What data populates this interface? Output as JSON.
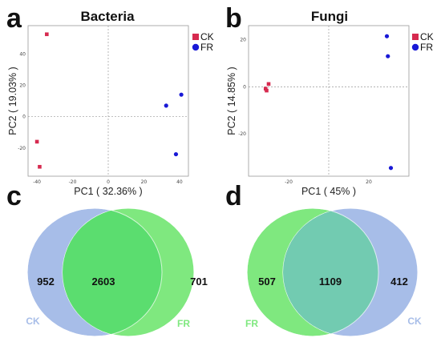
{
  "chart_data": [
    {
      "panel": "a",
      "type": "scatter",
      "title": "Bacteria",
      "xlabel": "PC1 ( 32.36% )",
      "ylabel": "PC2 ( 19.03% )",
      "xlim": [
        -45,
        45
      ],
      "ylim": [
        -38,
        58
      ],
      "xticks": [
        -40,
        -20,
        0,
        20,
        40
      ],
      "yticks": [
        -20,
        0,
        20,
        40
      ],
      "grid": false,
      "zero_lines": "dashed",
      "legend": "top-right",
      "series": [
        {
          "name": "CK",
          "marker": "square",
          "color": "#d62a4f",
          "points": [
            [
              -34.5,
              52.5
            ],
            [
              -40,
              -16
            ],
            [
              -38.5,
              -32
            ]
          ]
        },
        {
          "name": "FR",
          "marker": "circle",
          "color": "#1919d6",
          "points": [
            [
              32.5,
              7
            ],
            [
              41,
              14
            ],
            [
              38,
              -24
            ]
          ]
        }
      ]
    },
    {
      "panel": "b",
      "type": "scatter",
      "title": "Fungi",
      "xlabel": "PC1 ( 45% )",
      "ylabel": "PC2 ( 14.85% )",
      "xlim": [
        -40,
        40
      ],
      "ylim": [
        -38,
        26
      ],
      "xticks": [
        -20,
        20
      ],
      "yticks": [
        -20,
        0,
        20
      ],
      "grid": false,
      "zero_lines": "dashed",
      "legend": "top-right",
      "series": [
        {
          "name": "CK",
          "marker": "square",
          "color": "#d62a4f",
          "points": [
            [
              -30,
              1.2
            ],
            [
              -31.5,
              -0.8
            ],
            [
              -31,
              -1.6
            ]
          ]
        },
        {
          "name": "FR",
          "marker": "circle",
          "color": "#1919d6",
          "points": [
            [
              29,
              21.5
            ],
            [
              29.5,
              13
            ],
            [
              31,
              -34.5
            ]
          ]
        }
      ]
    },
    {
      "panel": "c",
      "type": "venn",
      "sets": [
        {
          "name": "CK",
          "unique": 952,
          "color": "#a7bde8"
        },
        {
          "name": "FR",
          "unique": 701,
          "color": "#7fe87f"
        }
      ],
      "intersection": 2603,
      "intersection_color": "#5bdd6f"
    },
    {
      "panel": "d",
      "type": "venn",
      "sets": [
        {
          "name": "FR",
          "unique": 507,
          "color": "#7fe87f"
        },
        {
          "name": "CK",
          "unique": 412,
          "color": "#a7bde8"
        }
      ],
      "intersection": 1109,
      "intersection_color": "#72cbb1"
    }
  ]
}
